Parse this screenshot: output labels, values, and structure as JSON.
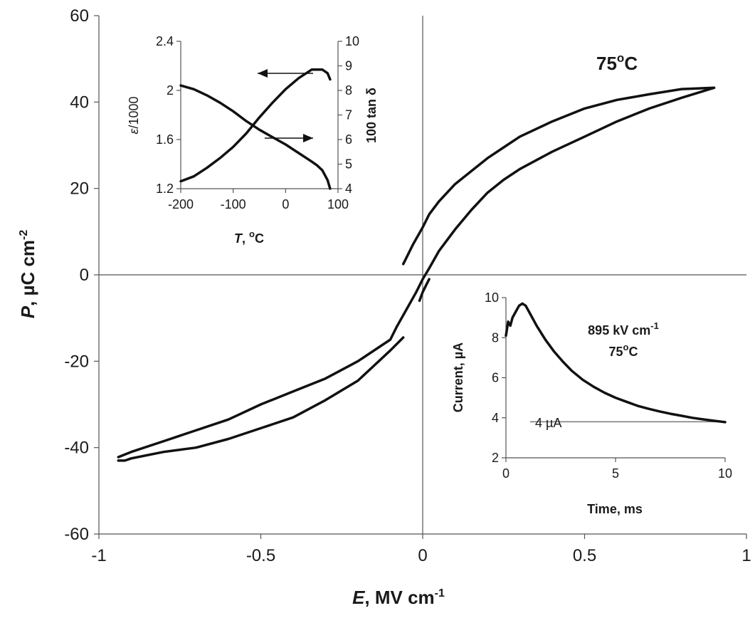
{
  "chart_data": [
    {
      "type": "line",
      "id": "main",
      "xlabel_symbol": "E",
      "xlabel_unit": ", MV cm",
      "xlabel_sup": "-1",
      "ylabel_symbol": "P",
      "ylabel_unit": ", µC cm",
      "ylabel_sup": "-2",
      "xlim": [
        -1,
        1
      ],
      "ylim": [
        -60,
        60
      ],
      "xticks": [
        -1,
        -0.5,
        0,
        0.5,
        1
      ],
      "xtick_labels": [
        "-1",
        "-0.5",
        "0",
        "0.5",
        "1"
      ],
      "yticks": [
        -60,
        -40,
        -20,
        0,
        20,
        40,
        60
      ],
      "ytick_labels": [
        "-60",
        "-40",
        "-20",
        "0",
        "20",
        "40",
        "60"
      ],
      "annotation_text": "75",
      "annotation_sup": "o",
      "annotation_suffix": "C",
      "series": [
        {
          "segment": "upper-branch",
          "x": [
            -0.06,
            -0.05,
            -0.03,
            0.0,
            0.02,
            0.05,
            0.1,
            0.15,
            0.2,
            0.25,
            0.3,
            0.4,
            0.5,
            0.6,
            0.7,
            0.8,
            0.9
          ],
          "y": [
            2.5,
            4,
            7,
            11,
            14,
            17,
            21,
            24,
            27,
            29.5,
            32,
            35.5,
            38.5,
            40.5,
            41.8,
            43,
            43.3
          ]
        },
        {
          "segment": "upper-return",
          "x": [
            0.9,
            0.8,
            0.7,
            0.6,
            0.5,
            0.4,
            0.3,
            0.25,
            0.2,
            0.15,
            0.1,
            0.05,
            0.02,
            0.0,
            -0.02,
            -0.05,
            -0.08,
            -0.1,
            -0.2,
            -0.3,
            -0.4,
            -0.5,
            -0.6,
            -0.7,
            -0.8,
            -0.9,
            -0.94
          ],
          "y": [
            43.3,
            41,
            38.5,
            35.5,
            32,
            28.5,
            24.5,
            22,
            19,
            15,
            10.5,
            5.5,
            1.5,
            -1,
            -4,
            -8,
            -12,
            -15,
            -20,
            -24,
            -27,
            -30,
            -33.5,
            -36,
            -38.5,
            -41,
            -42.2
          ]
        },
        {
          "segment": "lower-branch",
          "x": [
            -0.94,
            -0.92,
            -0.9,
            -0.8,
            -0.7,
            -0.6,
            -0.5,
            -0.4,
            -0.3,
            -0.2,
            -0.15,
            -0.1,
            -0.06
          ],
          "y": [
            -43,
            -43,
            -42.5,
            -41,
            -40,
            -38,
            -35.5,
            -33,
            -29,
            -24.5,
            -21,
            -17.5,
            -14.5
          ]
        },
        {
          "segment": "lower-right-start",
          "x": [
            -0.01,
            0.0,
            0.01,
            0.02
          ],
          "y": [
            -6,
            -4,
            -2.5,
            -1
          ]
        }
      ]
    },
    {
      "type": "line",
      "id": "inset-dielectric",
      "xlabel_symbol": "T",
      "xlabel_unit": ", ",
      "xlabel_sup": "o",
      "xlabel_suffix": "C",
      "ylabel_left_symbol": "ε",
      "ylabel_left_unit": "/1000",
      "ylabel_right": "100 tan δ",
      "xlim": [
        -200,
        100
      ],
      "ylim_left": [
        1.2,
        2.4
      ],
      "ylim_right": [
        4,
        10
      ],
      "xticks": [
        -200,
        -100,
        0,
        100
      ],
      "xtick_labels": [
        "-200",
        "-100",
        "0",
        "100"
      ],
      "yticks_left": [
        1.2,
        1.6,
        2,
        2.4
      ],
      "ytick_left_labels": [
        "1.2",
        "1.6",
        "2",
        "2.4"
      ],
      "yticks_right": [
        4,
        5,
        6,
        7,
        8,
        9,
        10
      ],
      "ytick_right_labels": [
        "4",
        "5",
        "6",
        "7",
        "8",
        "9",
        "10"
      ],
      "series": [
        {
          "axis": "left",
          "x": [
            -200,
            -175,
            -150,
            -125,
            -100,
            -75,
            -50,
            -25,
            0,
            25,
            50,
            70,
            80,
            85
          ],
          "y": [
            1.26,
            1.3,
            1.37,
            1.45,
            1.54,
            1.65,
            1.78,
            1.9,
            2.01,
            2.1,
            2.17,
            2.17,
            2.14,
            2.09
          ]
        },
        {
          "axis": "right",
          "x": [
            -200,
            -175,
            -150,
            -125,
            -100,
            -75,
            -50,
            -25,
            0,
            25,
            50,
            60,
            70,
            80,
            85
          ],
          "y": [
            8.2,
            8.05,
            7.8,
            7.5,
            7.15,
            6.75,
            6.4,
            6.1,
            5.8,
            5.45,
            5.1,
            4.95,
            4.75,
            4.35,
            4.0
          ]
        }
      ]
    },
    {
      "type": "line",
      "id": "inset-current",
      "xlabel": "Time, ms",
      "ylabel": "Current, µA",
      "xlim": [
        0,
        10
      ],
      "ylim": [
        2,
        10
      ],
      "xticks": [
        0,
        5,
        10
      ],
      "xtick_labels": [
        "0",
        "5",
        "10"
      ],
      "yticks": [
        2,
        4,
        6,
        8,
        10
      ],
      "ytick_labels": [
        "2",
        "4",
        "6",
        "8",
        "10"
      ],
      "annotation_field": "895 kV cm",
      "annotation_field_sup": "-1",
      "annotation_temp": "75",
      "annotation_temp_sup": "o",
      "annotation_temp_suffix": "C",
      "reference_label": "4 µA",
      "reference_value": 3.8,
      "reference_x": [
        1.1,
        10
      ],
      "series": [
        {
          "x": [
            0,
            0.1,
            0.2,
            0.3,
            0.4,
            0.5,
            0.6,
            0.75,
            0.9,
            1.1,
            1.4,
            1.8,
            2.2,
            2.6,
            3.0,
            3.5,
            4.0,
            4.5,
            5.0,
            5.5,
            6.0,
            6.5,
            7.0,
            7.5,
            8.0,
            8.5,
            9.0,
            9.5,
            10
          ],
          "y": [
            8.1,
            8.8,
            8.6,
            9.0,
            9.2,
            9.4,
            9.6,
            9.7,
            9.6,
            9.2,
            8.6,
            7.9,
            7.3,
            6.8,
            6.35,
            5.9,
            5.55,
            5.25,
            5.0,
            4.8,
            4.6,
            4.45,
            4.32,
            4.2,
            4.1,
            4.0,
            3.92,
            3.85,
            3.78
          ]
        }
      ]
    }
  ]
}
